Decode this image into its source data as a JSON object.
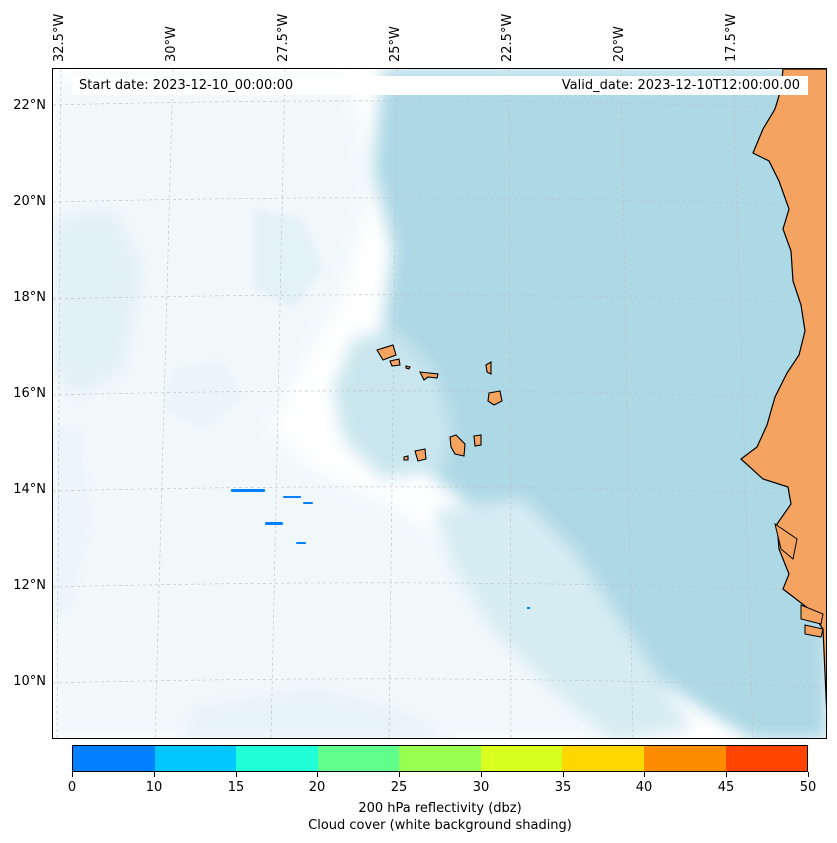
{
  "header": {
    "start_date": "Start date: 2023-12-10_00:00:00",
    "valid_date": "Valid_date: 2023-12-10T12:00:00.00"
  },
  "map": {
    "lon_labels": [
      "32.5°W",
      "30°W",
      "27.5°W",
      "25°W",
      "22.5°W",
      "20°W",
      "17.5°W"
    ],
    "lat_labels": [
      "22°N",
      "20°N",
      "18°N",
      "16°N",
      "14°N",
      "12°N",
      "10°N"
    ],
    "colors": {
      "land": "#f4a460",
      "cloud_light": "#e6f3f7",
      "cloud_mid": "#c9e6ee",
      "cloud_dense": "#add8e6",
      "reflectivity_0_10": "#0080ff",
      "coastline": "#000000",
      "gridline": "#bbbbbb"
    }
  },
  "colorbar": {
    "ticks": [
      "0",
      "10",
      "15",
      "20",
      "25",
      "30",
      "35",
      "40",
      "45",
      "50"
    ],
    "colors": [
      "#0080ff",
      "#00c8ff",
      "#20ffd8",
      "#60ff8c",
      "#98ff50",
      "#d8ff20",
      "#ffd700",
      "#ff8c00",
      "#ff4500"
    ],
    "title": "200 hPa reflectivity (dbz)",
    "subtitle": "Cloud cover (white background shading)"
  }
}
